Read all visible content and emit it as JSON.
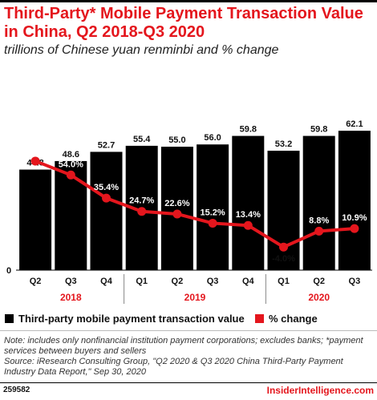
{
  "title": "Third-Party* Mobile Payment Transaction Value in China, Q2 2018-Q3 2020",
  "subtitle": "trillions of Chinese yuan renminbi and % change",
  "chart_data": {
    "type": "bar",
    "categories": [
      "Q2",
      "Q3",
      "Q4",
      "Q1",
      "Q2",
      "Q3",
      "Q4",
      "Q1",
      "Q2",
      "Q3"
    ],
    "groups": [
      {
        "label": "2018",
        "count": 3
      },
      {
        "label": "2019",
        "count": 4
      },
      {
        "label": "2020",
        "count": 3
      }
    ],
    "series": [
      {
        "name": "Third-party mobile payment transaction value",
        "type": "bar",
        "color": "#000000",
        "values": [
          44.8,
          48.6,
          52.7,
          55.4,
          55.0,
          56.0,
          59.8,
          53.2,
          59.8,
          62.1
        ],
        "labels": [
          "44.8",
          "48.6",
          "52.7",
          "55.4",
          "55.0",
          "56.0",
          "59.8",
          "53.2",
          "59.8",
          "62.1"
        ]
      },
      {
        "name": "% change",
        "type": "line",
        "color": "#e4161d",
        "values": [
          65.2,
          54.0,
          35.4,
          24.7,
          22.6,
          15.2,
          13.4,
          -4.0,
          8.8,
          10.9
        ],
        "labels": [
          "65.2%",
          "54.0%",
          "35.4%",
          "24.7%",
          "22.6%",
          "15.2%",
          "13.4%",
          "-4.0%",
          "8.8%",
          "10.9%"
        ]
      }
    ],
    "axis_zero_label": "0",
    "legend_position": "bottom"
  },
  "note": "Note: includes only nonfinancial institution payment corporations; excludes banks; *payment services between buyers and sellers",
  "source": "Source: iResearch Consulting Group, \"Q2 2020 & Q3 2020 China Third-Party Payment Industry Data Report,\" Sep 30, 2020",
  "footer": {
    "chart_id": "259582",
    "brand": "InsiderIntelligence.com"
  }
}
